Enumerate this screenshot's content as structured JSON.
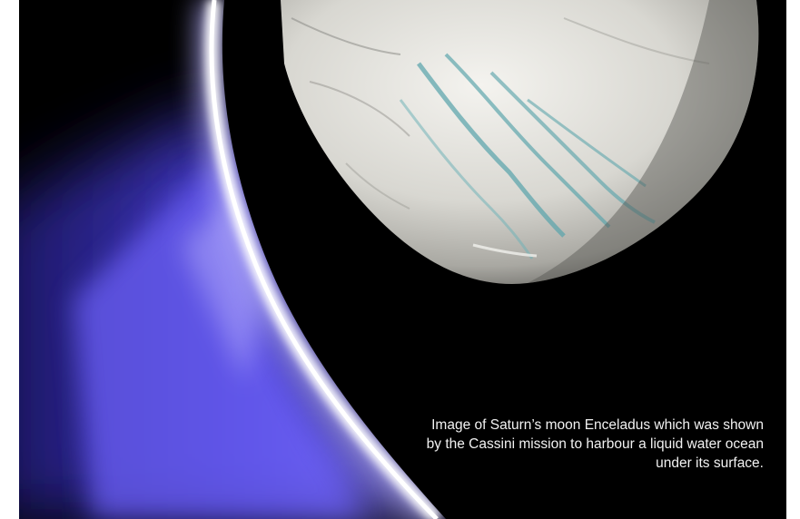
{
  "photo": {
    "subject": "Enceladus with plumes",
    "colors": {
      "background": "#000000",
      "plume": "#5a4df0",
      "limb_glow": "#ffffff",
      "moon_surface": "#d9d8d3",
      "fracture_stripes": "#5fa8b0"
    }
  },
  "caption": {
    "text": "Image of Saturn’s moon Enceladus which was shown by the Cassini mission to harbour a liquid water ocean under its surface."
  }
}
